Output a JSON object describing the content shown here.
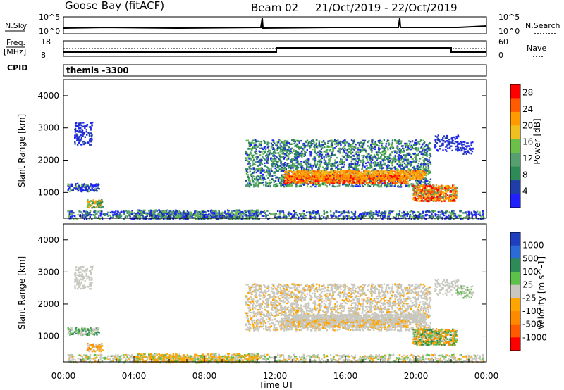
{
  "header": {
    "station": "Goose Bay (fitACF)",
    "beam": "Beam 02",
    "date_range": "21/Oct/2019 - 22/Oct/2019"
  },
  "panels": {
    "nsky": {
      "left_label": "N.Sky",
      "right_label": "N.Search",
      "left_ticks": [
        "10^5",
        "10^0"
      ],
      "right_ticks": [
        "10^5",
        "10^0"
      ]
    },
    "freq": {
      "left_label_1": "Freq.",
      "left_label_2": "[MHz]",
      "left_ticks": [
        "18",
        "8"
      ],
      "right_label": "Nave",
      "right_ticks": [
        "60",
        "0"
      ]
    },
    "cpid": {
      "label": "CPID",
      "value": "themis -3300"
    }
  },
  "colors": {
    "power": [
      "#2020ff",
      "#1f3fa6",
      "#2e8b57",
      "#55a06f",
      "#6cc04a",
      "#f0c020",
      "#ff9a00",
      "#ff5a00",
      "#ff0000"
    ],
    "velocity": [
      "#1f3fbf",
      "#2c6bd6",
      "#2e8b57",
      "#5cc04a",
      "#c8c8c0",
      "#ffa500",
      "#ff8a00",
      "#ff5a00",
      "#ff0000"
    ],
    "gray": "#c8c8c0"
  },
  "chart_data": [
    {
      "type": "heatmap",
      "ylabel": "Slant Range [km]",
      "y_ticks": [
        "1000",
        "2000",
        "3000",
        "4000"
      ],
      "ylim": [
        200,
        4500
      ],
      "colorbar": {
        "label": "Power [dB]",
        "ticks": [
          "4",
          "8",
          "12",
          "16",
          "20",
          "24",
          "28"
        ],
        "range": [
          0,
          30
        ]
      }
    },
    {
      "type": "heatmap",
      "ylabel": "Slant Range [km]",
      "y_ticks": [
        "1000",
        "2000",
        "3000",
        "4000"
      ],
      "ylim": [
        200,
        4500
      ],
      "xlabel": "Time UT",
      "x_ticks": [
        "00:00",
        "04:00",
        "08:00",
        "12:00",
        "16:00",
        "20:00",
        "00:00"
      ],
      "xlim_hours": [
        0,
        24
      ],
      "colorbar": {
        "label": "Velocity [m s^-1]",
        "ticks": [
          "1000",
          "500",
          "100",
          "25",
          "-25",
          "-100",
          "-500",
          "-1000"
        ]
      }
    }
  ]
}
